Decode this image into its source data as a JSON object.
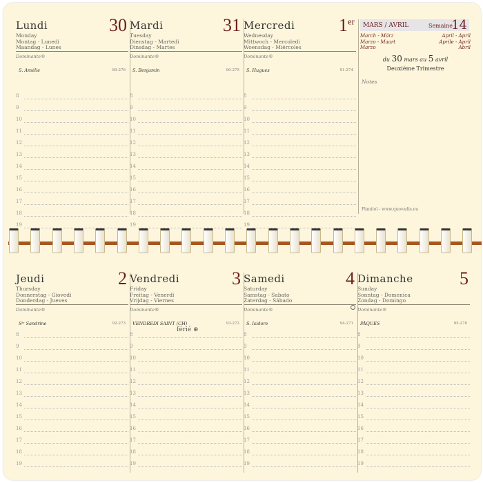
{
  "hours": [
    "8",
    "9",
    "10",
    "11",
    "12",
    "13",
    "14",
    "15",
    "16",
    "17",
    "18",
    "19"
  ],
  "dominante": "Dominante®",
  "top_days": [
    {
      "name": "Lundi",
      "num": "30",
      "sup": "",
      "t1": "Monday",
      "t2": "Montag - Lunedi",
      "t3": "Maandag - Lunes",
      "saint": "S. Amélie",
      "count": "89-276"
    },
    {
      "name": "Mardi",
      "num": "31",
      "sup": "",
      "t1": "Tuesday",
      "t2": "Dienstag - Martedi",
      "t3": "Dinsdag - Martes",
      "saint": "S. Benjamin",
      "count": "90-275"
    },
    {
      "name": "Mercredi",
      "num": "1",
      "sup": "er",
      "t1": "Wednesday",
      "t2": "Mittwoch - Mercoledi",
      "t3": "Woensdag - Miércoles",
      "saint": "S. Hugues",
      "count": "91-274"
    }
  ],
  "bottom_days": [
    {
      "name": "Jeudi",
      "num": "2",
      "sup": "",
      "t1": "Thursday",
      "t2": "Donnerstag - Giovedi",
      "t3": "Donderdag - Jueves",
      "saint": "Sᵗᵉ Sandrine",
      "count": "92-273"
    },
    {
      "name": "Vendredi",
      "num": "3",
      "sup": "",
      "t1": "Friday",
      "t2": "Freitag - Venerdi",
      "t3": "Vrijdag - Viernes",
      "saint": "VENDREDI SAINT (CH)",
      "count": "93-272"
    },
    {
      "name": "Samedi",
      "num": "4",
      "sup": "",
      "t1": "Saturday",
      "t2": "Samstag - Sabato",
      "t3": "Zaterdag - Sábado",
      "saint": "S. Isidore",
      "count": "94-271"
    },
    {
      "name": "Dimanche",
      "num": "5",
      "sup": "",
      "t1": "Sunday",
      "t2": "Sonntag - Domenica",
      "t3": "Zondag - Domingo",
      "saint": "PÂQUES",
      "count": "95-270"
    }
  ],
  "ferie": "férié ⊕",
  "panel": {
    "month": "MARS / AVRIL",
    "week_label": "Semaine",
    "week": "14",
    "left": [
      "March - März",
      "Marzo - Maart",
      "Marzo"
    ],
    "right": [
      "April - April",
      "Aprile - April",
      "Abril"
    ],
    "range_du": "du",
    "range_d1": "30",
    "range_m1": "mars",
    "range_au": "au",
    "range_d2": "5",
    "range_m2": "avril",
    "quarter": "Deuxième Trimestre",
    "notes": "Notes",
    "footer": "Planitol - www.quovadis.eu"
  }
}
